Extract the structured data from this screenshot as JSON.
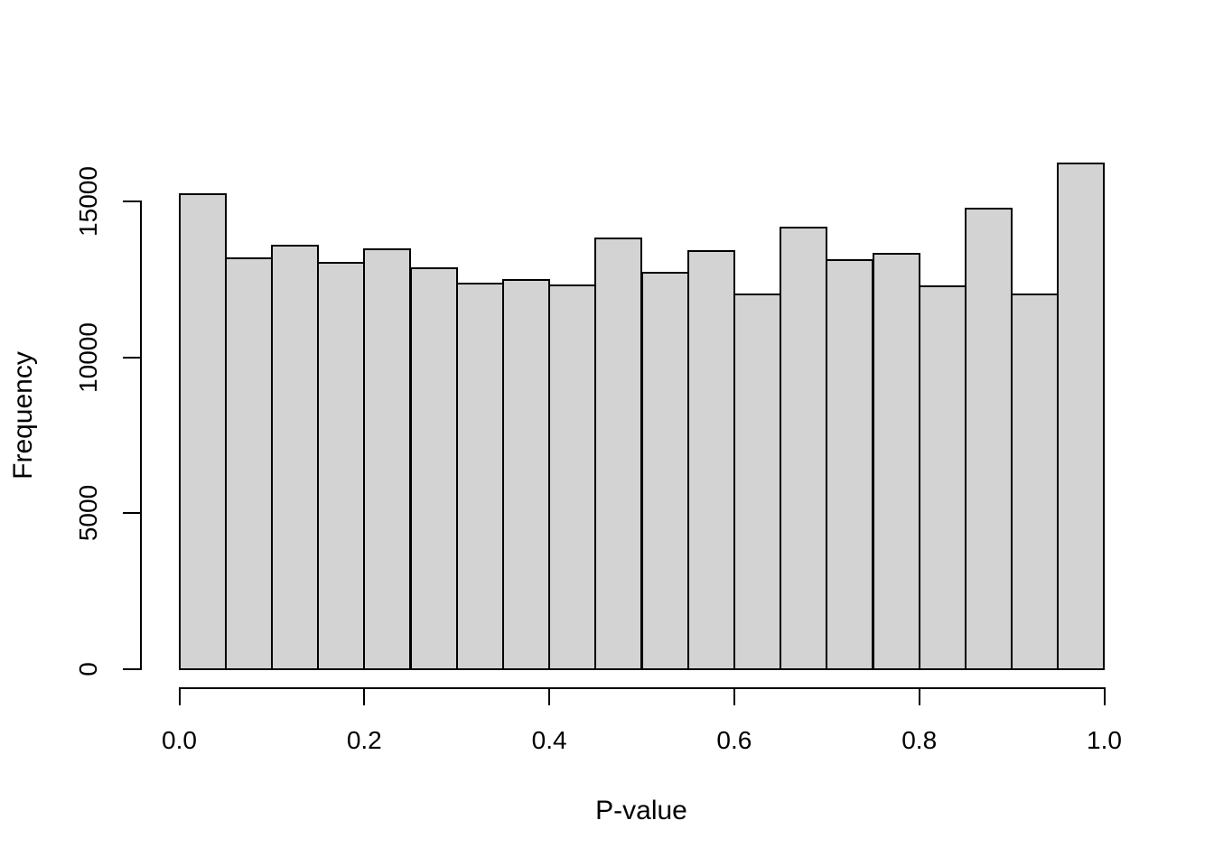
{
  "chart_data": {
    "type": "bar",
    "subtype": "histogram",
    "title": "",
    "xlabel": "P-value",
    "ylabel": "Frequency",
    "bin_start": 0.0,
    "bin_width": 0.05,
    "categories": [
      "0.00-0.05",
      "0.05-0.10",
      "0.10-0.15",
      "0.15-0.20",
      "0.20-0.25",
      "0.25-0.30",
      "0.30-0.35",
      "0.35-0.40",
      "0.40-0.45",
      "0.45-0.50",
      "0.50-0.55",
      "0.55-0.60",
      "0.60-0.65",
      "0.65-0.70",
      "0.70-0.75",
      "0.75-0.80",
      "0.80-0.85",
      "0.85-0.90",
      "0.90-0.95",
      "0.95-1.00"
    ],
    "values": [
      15250,
      13200,
      13600,
      13050,
      13500,
      12900,
      12400,
      12500,
      12350,
      13850,
      12750,
      13450,
      12050,
      14200,
      13150,
      13350,
      12300,
      14800,
      12050,
      16250
    ],
    "xlim": [
      0.0,
      1.0
    ],
    "ylim": [
      0,
      15000
    ],
    "x_tick_values": [
      0.0,
      0.2,
      0.4,
      0.6,
      0.8,
      1.0
    ],
    "x_tick_labels": [
      "0.0",
      "0.2",
      "0.4",
      "0.6",
      "0.8",
      "1.0"
    ],
    "y_tick_values": [
      0,
      5000,
      10000,
      15000
    ],
    "y_tick_labels": [
      "0",
      "5000",
      "10000",
      "15000"
    ],
    "grid": "off",
    "legend": "none",
    "colors": {
      "bar_fill": "#d3d3d3",
      "bar_border": "#000000",
      "axis": "#000000",
      "text": "#000000",
      "background": "#ffffff"
    }
  }
}
